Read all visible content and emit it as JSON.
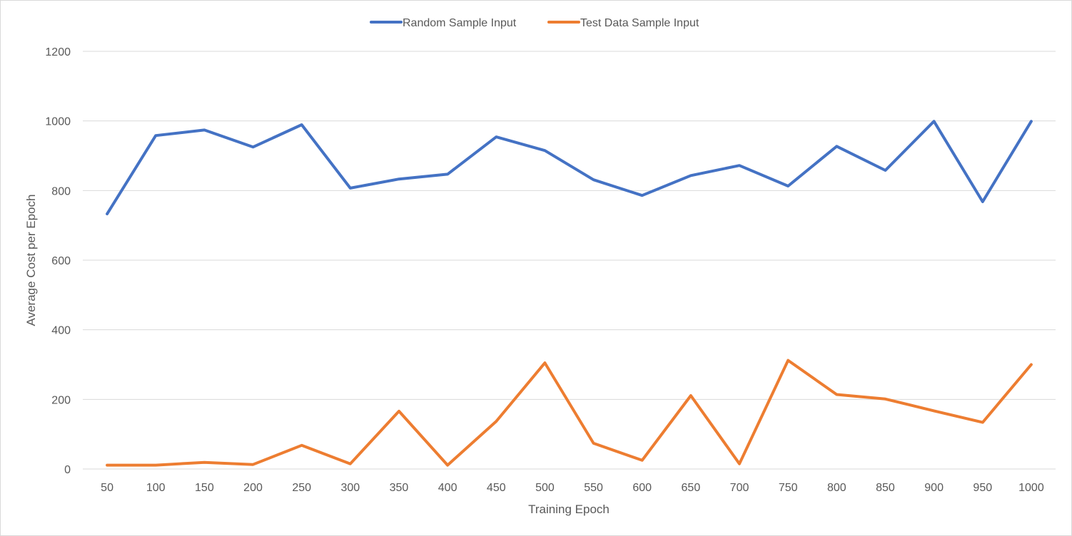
{
  "chart_data": {
    "type": "line",
    "title": "",
    "xlabel": "Training Epoch",
    "ylabel": "Average Cost per Epoch",
    "ylim": [
      0,
      1200
    ],
    "y_ticks": [
      0,
      200,
      400,
      600,
      800,
      1000,
      1200
    ],
    "grid": true,
    "legend_position": "top",
    "categories": [
      "50",
      "100",
      "150",
      "200",
      "250",
      "300",
      "350",
      "400",
      "450",
      "500",
      "550",
      "600",
      "650",
      "700",
      "750",
      "800",
      "850",
      "900",
      "950",
      "1000"
    ],
    "series": [
      {
        "name": "Random Sample Input",
        "color": "#4472C4",
        "values": [
          733,
          958,
          974,
          925,
          989,
          807,
          833,
          847,
          954,
          915,
          831,
          786,
          843,
          872,
          813,
          927,
          858,
          999,
          768,
          999
        ]
      },
      {
        "name": "Test Data Sample Input",
        "color": "#ED7D31",
        "values": [
          11,
          11,
          19,
          13,
          68,
          15,
          166,
          11,
          137,
          305,
          74,
          25,
          211,
          15,
          312,
          214,
          201,
          167,
          134,
          300
        ]
      }
    ]
  }
}
